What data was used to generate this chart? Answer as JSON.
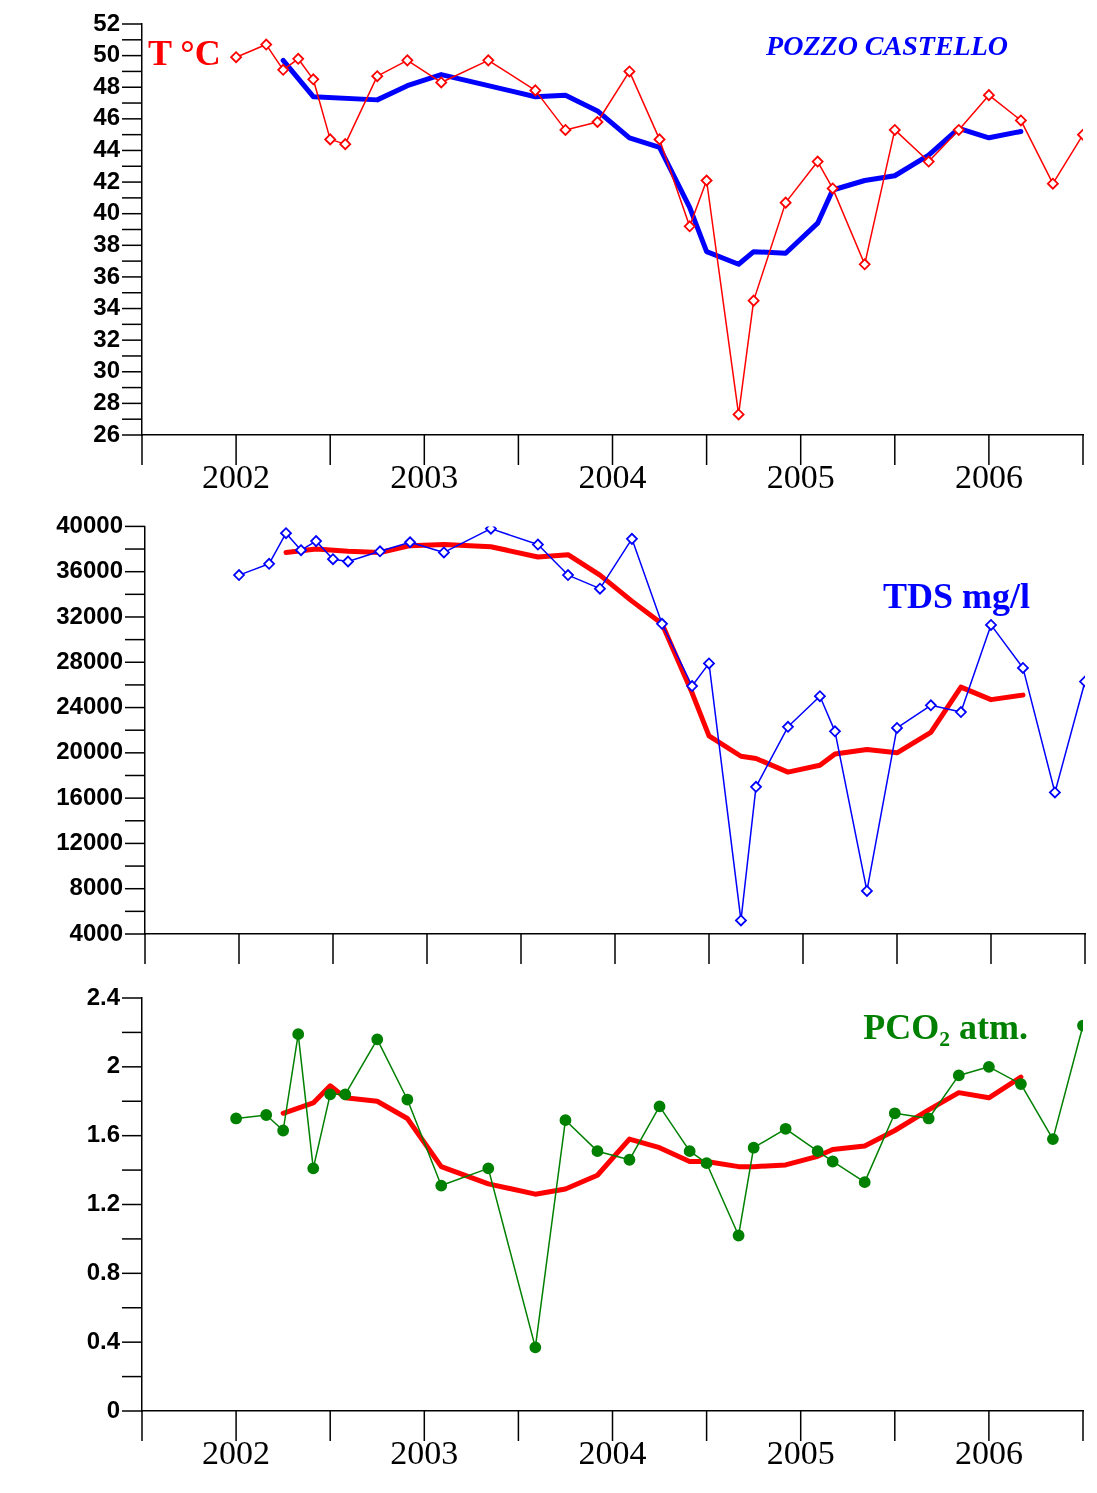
{
  "chart_data": [
    {
      "type": "line",
      "title": "POZZO CASTELLO",
      "xlim": [
        2002,
        2007
      ],
      "xticks": [
        {
          "value": 2002.5,
          "label": "2002"
        },
        {
          "value": 2003.5,
          "label": "2003"
        },
        {
          "value": 2004.5,
          "label": "2004"
        },
        {
          "value": 2005.5,
          "label": "2005"
        },
        {
          "value": 2006.5,
          "label": "2006"
        }
      ],
      "ylim": [
        26,
        52
      ],
      "yticks": [
        26,
        28,
        30,
        32,
        34,
        36,
        38,
        40,
        42,
        44,
        46,
        48,
        50,
        52
      ],
      "grid": false,
      "legend": "top left",
      "series": [
        {
          "name": "T °C",
          "color": "#ff0000",
          "marker": "diamond",
          "x": [
            2002.5,
            2002.66,
            2002.75,
            2002.83,
            2002.91,
            2003.0,
            2003.08,
            2003.25,
            2003.41,
            2003.59,
            2003.84,
            2004.09,
            2004.25,
            2004.42,
            2004.59,
            2004.75,
            2004.91,
            2005.0,
            2005.17,
            2005.25,
            2005.42,
            2005.59,
            2005.67,
            2005.84,
            2006.0,
            2006.18,
            2006.34,
            2006.5,
            2006.67,
            2006.84,
            2007.0
          ],
          "values": [
            49.9,
            50.7,
            49.1,
            49.8,
            48.5,
            44.7,
            44.4,
            48.7,
            49.7,
            48.3,
            49.7,
            47.8,
            45.3,
            45.8,
            49.0,
            44.7,
            39.2,
            42.1,
            27.3,
            34.5,
            40.7,
            43.3,
            41.6,
            36.8,
            45.3,
            43.3,
            45.3,
            47.5,
            45.9,
            41.9,
            45.0
          ]
        },
        {
          "color": "#0000ff",
          "marker": "none",
          "x": [
            2002.75,
            2002.91,
            2003.25,
            2003.41,
            2003.59,
            2003.84,
            2004.09,
            2004.25,
            2004.42,
            2004.59,
            2004.75,
            2004.91,
            2005.0,
            2005.17,
            2005.25,
            2005.42,
            2005.59,
            2005.67,
            2005.84,
            2006.0,
            2006.18,
            2006.34,
            2006.5,
            2006.67
          ],
          "values": [
            49.7,
            47.4,
            47.2,
            48.1,
            48.8,
            48.1,
            47.4,
            47.5,
            46.5,
            44.8,
            44.2,
            40.4,
            37.6,
            36.8,
            37.6,
            37.5,
            39.4,
            41.5,
            42.1,
            42.4,
            43.7,
            45.4,
            44.8,
            45.2
          ]
        }
      ]
    },
    {
      "type": "line",
      "tick_labels": "y",
      "xlim": [
        2002,
        2007
      ],
      "xticks": [
        2002.5,
        2003.5,
        2004.5,
        2005.5,
        2006.5
      ],
      "ylim": [
        4000,
        40000
      ],
      "yticks": [
        4000,
        8000,
        12000,
        16000,
        20000,
        24000,
        28000,
        32000,
        36000,
        40000
      ],
      "grid": false,
      "legend": "top right",
      "series": [
        {
          "name": "TDS mg/l",
          "color": "#0000ff",
          "marker": "diamond",
          "x": [
            2002.5,
            2002.66,
            2002.75,
            2002.83,
            2002.91,
            2003.0,
            2003.08,
            2003.25,
            2003.41,
            2003.59,
            2003.84,
            2004.09,
            2004.25,
            2004.42,
            2004.59,
            2004.75,
            2004.91,
            2005.0,
            2005.17,
            2005.25,
            2005.42,
            2005.59,
            2005.67,
            2005.84,
            2006.0,
            2006.18,
            2006.34,
            2006.5,
            2006.67,
            2006.84,
            2007.0
          ],
          "values": [
            35700,
            36700,
            39400,
            37900,
            38700,
            37100,
            36900,
            37800,
            38600,
            37700,
            39800,
            38400,
            35700,
            34500,
            38900,
            31400,
            25900,
            27900,
            5200,
            17000,
            22300,
            25000,
            21900,
            7800,
            22200,
            24200,
            23600,
            31300,
            27500,
            16500,
            26300
          ]
        },
        {
          "color": "#ff0000",
          "marker": "none",
          "x": [
            2002.75,
            2002.91,
            2003.08,
            2003.25,
            2003.41,
            2003.59,
            2003.84,
            2004.09,
            2004.25,
            2004.42,
            2004.59,
            2004.75,
            2004.91,
            2005.0,
            2005.17,
            2005.25,
            2005.42,
            2005.59,
            2005.67,
            2005.84,
            2006.0,
            2006.18,
            2006.34,
            2006.5,
            2006.67
          ],
          "values": [
            37700,
            38000,
            37800,
            37700,
            38300,
            38400,
            38200,
            37300,
            37500,
            35700,
            33400,
            31400,
            25300,
            21500,
            19700,
            19500,
            18300,
            18900,
            19900,
            20300,
            20000,
            21800,
            25800,
            24700,
            25100
          ]
        }
      ]
    },
    {
      "type": "line",
      "xlim": [
        2002,
        2007
      ],
      "xticks": [
        {
          "value": 2002.5,
          "label": "2002"
        },
        {
          "value": 2003.5,
          "label": "2003"
        },
        {
          "value": 2004.5,
          "label": "2004"
        },
        {
          "value": 2005.5,
          "label": "2005"
        },
        {
          "value": 2006.5,
          "label": "2006"
        }
      ],
      "ylim": [
        0,
        2.4
      ],
      "yticks": [
        0,
        0.4,
        0.8,
        1.2,
        1.6,
        2,
        2.4
      ],
      "grid": false,
      "legend": "top right",
      "series": [
        {
          "name": "PCO₂ atm.",
          "color": "#008000",
          "marker": "circle",
          "x": [
            2002.5,
            2002.66,
            2002.75,
            2002.83,
            2002.91,
            2003.0,
            2003.08,
            2003.25,
            2003.41,
            2003.59,
            2003.84,
            2004.09,
            2004.25,
            2004.42,
            2004.59,
            2004.75,
            2004.91,
            2005.0,
            2005.17,
            2005.25,
            2005.42,
            2005.59,
            2005.67,
            2005.84,
            2006.0,
            2006.18,
            2006.34,
            2006.5,
            2006.67,
            2006.84,
            2007.0
          ],
          "values": [
            1.7,
            1.72,
            1.63,
            2.19,
            1.41,
            1.84,
            1.84,
            2.16,
            1.81,
            1.31,
            1.41,
            0.37,
            1.69,
            1.51,
            1.46,
            1.77,
            1.51,
            1.44,
            1.02,
            1.53,
            1.64,
            1.51,
            1.45,
            1.33,
            1.73,
            1.7,
            1.95,
            2.0,
            1.9,
            1.58,
            2.24
          ]
        },
        {
          "color": "#ff0000",
          "marker": "none",
          "x": [
            2002.75,
            2002.91,
            2003.0,
            2003.08,
            2003.25,
            2003.41,
            2003.59,
            2003.84,
            2004.09,
            2004.25,
            2004.42,
            2004.59,
            2004.75,
            2004.91,
            2005.0,
            2005.17,
            2005.25,
            2005.42,
            2005.59,
            2005.67,
            2005.84,
            2006.0,
            2006.18,
            2006.34,
            2006.5,
            2006.67
          ],
          "values": [
            1.73,
            1.79,
            1.89,
            1.82,
            1.8,
            1.7,
            1.42,
            1.32,
            1.26,
            1.29,
            1.37,
            1.58,
            1.53,
            1.45,
            1.45,
            1.42,
            1.42,
            1.43,
            1.48,
            1.52,
            1.54,
            1.63,
            1.75,
            1.85,
            1.82,
            1.94
          ]
        }
      ]
    }
  ]
}
